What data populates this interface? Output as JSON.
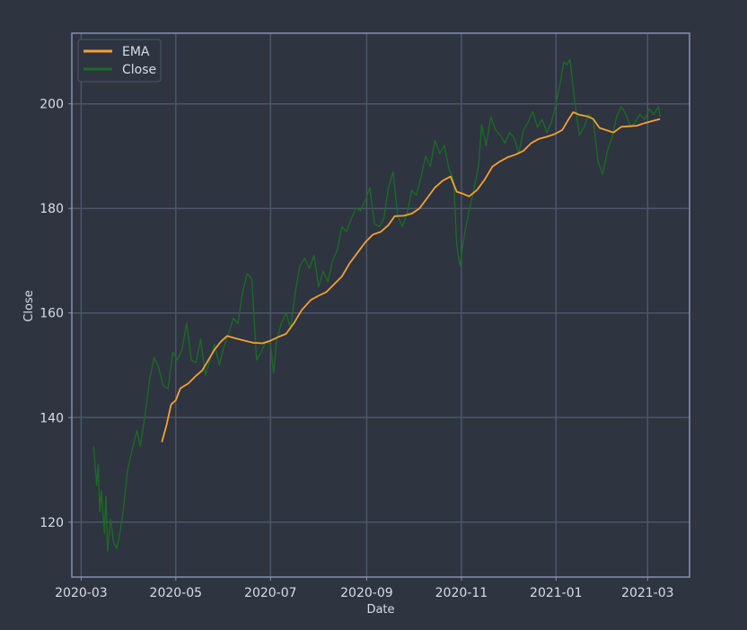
{
  "chart_data": {
    "type": "line",
    "title": "",
    "xlabel": "Date",
    "ylabel": "Close",
    "x_ticks": [
      "2020-03",
      "2020-05",
      "2020-07",
      "2020-09",
      "2020-11",
      "2021-01",
      "2021-03"
    ],
    "y_ticks": [
      120,
      140,
      160,
      180,
      200
    ],
    "xlim": [
      "2020-02-24",
      "2021-03-28"
    ],
    "ylim": [
      109.5,
      213.5
    ],
    "grid": true,
    "legend_position": "top-left",
    "colors": {
      "background": "#2e3440",
      "grid": "#4c566a",
      "frame": "#8791b0",
      "text": "#d8dee9"
    },
    "series": [
      {
        "name": "EMA",
        "color": "#f5a132",
        "points": [
          [
            "2020-04-22",
            135.3
          ],
          [
            "2020-04-25",
            138.5
          ],
          [
            "2020-04-28",
            142.5
          ],
          [
            "2020-05-01",
            143.3
          ],
          [
            "2020-05-04",
            145.6
          ],
          [
            "2020-05-09",
            146.5
          ],
          [
            "2020-05-14",
            148.0
          ],
          [
            "2020-05-18",
            149.0
          ],
          [
            "2020-05-22",
            151.0
          ],
          [
            "2020-05-26",
            153.0
          ],
          [
            "2020-05-30",
            154.5
          ],
          [
            "2020-06-03",
            155.6
          ],
          [
            "2020-06-08",
            155.2
          ],
          [
            "2020-06-13",
            154.8
          ],
          [
            "2020-06-20",
            154.3
          ],
          [
            "2020-06-26",
            154.2
          ],
          [
            "2020-07-01",
            154.7
          ],
          [
            "2020-07-06",
            155.4
          ],
          [
            "2020-07-11",
            156.0
          ],
          [
            "2020-07-16",
            158.0
          ],
          [
            "2020-07-21",
            160.5
          ],
          [
            "2020-07-27",
            162.5
          ],
          [
            "2020-08-01",
            163.3
          ],
          [
            "2020-08-06",
            164.0
          ],
          [
            "2020-08-11",
            165.5
          ],
          [
            "2020-08-16",
            167.0
          ],
          [
            "2020-08-21",
            169.5
          ],
          [
            "2020-08-26",
            171.5
          ],
          [
            "2020-08-31",
            173.5
          ],
          [
            "2020-09-05",
            175.0
          ],
          [
            "2020-09-10",
            175.5
          ],
          [
            "2020-09-15",
            176.8
          ],
          [
            "2020-09-19",
            178.5
          ],
          [
            "2020-09-25",
            178.6
          ],
          [
            "2020-09-30",
            179.0
          ],
          [
            "2020-10-05",
            180.0
          ],
          [
            "2020-10-10",
            182.0
          ],
          [
            "2020-10-15",
            184.0
          ],
          [
            "2020-10-20",
            185.3
          ],
          [
            "2020-10-25",
            186.1
          ],
          [
            "2020-10-29",
            183.2
          ],
          [
            "2020-11-02",
            182.8
          ],
          [
            "2020-11-06",
            182.3
          ],
          [
            "2020-11-11",
            183.5
          ],
          [
            "2020-11-16",
            185.5
          ],
          [
            "2020-11-21",
            188.0
          ],
          [
            "2020-11-26",
            189.0
          ],
          [
            "2020-12-01",
            189.8
          ],
          [
            "2020-12-06",
            190.3
          ],
          [
            "2020-12-11",
            191.0
          ],
          [
            "2020-12-16",
            192.5
          ],
          [
            "2020-12-21",
            193.3
          ],
          [
            "2020-12-26",
            193.7
          ],
          [
            "2020-12-31",
            194.2
          ],
          [
            "2021-01-05",
            195.0
          ],
          [
            "2021-01-09",
            197.0
          ],
          [
            "2021-01-12",
            198.4
          ],
          [
            "2021-01-16",
            197.9
          ],
          [
            "2021-01-21",
            197.6
          ],
          [
            "2021-01-25",
            197.1
          ],
          [
            "2021-01-29",
            195.4
          ],
          [
            "2021-02-03",
            194.9
          ],
          [
            "2021-02-07",
            194.5
          ],
          [
            "2021-02-12",
            195.6
          ],
          [
            "2021-02-17",
            195.7
          ],
          [
            "2021-02-22",
            195.8
          ],
          [
            "2021-02-27",
            196.3
          ],
          [
            "2021-03-04",
            196.7
          ],
          [
            "2021-03-09",
            197.1
          ]
        ]
      },
      {
        "name": "Close",
        "color": "#1a6b25",
        "points": [
          [
            "2020-03-09",
            134.5
          ],
          [
            "2020-03-11",
            127.0
          ],
          [
            "2020-03-12",
            131.0
          ],
          [
            "2020-03-13",
            122.0
          ],
          [
            "2020-03-14",
            126.0
          ],
          [
            "2020-03-16",
            118.0
          ],
          [
            "2020-03-17",
            125.0
          ],
          [
            "2020-03-18",
            114.5
          ],
          [
            "2020-03-20",
            120.5
          ],
          [
            "2020-03-22",
            116.0
          ],
          [
            "2020-03-24",
            115.0
          ],
          [
            "2020-03-26",
            118.0
          ],
          [
            "2020-03-28",
            122.0
          ],
          [
            "2020-03-31",
            130.0
          ],
          [
            "2020-04-03",
            134.0
          ],
          [
            "2020-04-06",
            137.5
          ],
          [
            "2020-04-08",
            134.5
          ],
          [
            "2020-04-11",
            140.0
          ],
          [
            "2020-04-14",
            147.0
          ],
          [
            "2020-04-17",
            151.5
          ],
          [
            "2020-04-20",
            149.5
          ],
          [
            "2020-04-23",
            146.0
          ],
          [
            "2020-04-26",
            145.5
          ],
          [
            "2020-04-29",
            152.5
          ],
          [
            "2020-05-02",
            151.0
          ],
          [
            "2020-05-05",
            153.0
          ],
          [
            "2020-05-08",
            158.0
          ],
          [
            "2020-05-11",
            151.0
          ],
          [
            "2020-05-14",
            150.5
          ],
          [
            "2020-05-17",
            155.0
          ],
          [
            "2020-05-20",
            148.0
          ],
          [
            "2020-05-23",
            151.0
          ],
          [
            "2020-05-26",
            154.0
          ],
          [
            "2020-05-29",
            150.0
          ],
          [
            "2020-06-01",
            153.5
          ],
          [
            "2020-06-04",
            156.0
          ],
          [
            "2020-06-07",
            159.0
          ],
          [
            "2020-06-10",
            158.0
          ],
          [
            "2020-06-13",
            164.0
          ],
          [
            "2020-06-16",
            167.5
          ],
          [
            "2020-06-19",
            166.5
          ],
          [
            "2020-06-22",
            151.0
          ],
          [
            "2020-06-25",
            152.5
          ],
          [
            "2020-06-28",
            154.5
          ],
          [
            "2020-07-01",
            154.0
          ],
          [
            "2020-07-03",
            148.5
          ],
          [
            "2020-07-05",
            155.0
          ],
          [
            "2020-07-08",
            158.0
          ],
          [
            "2020-07-11",
            160.0
          ],
          [
            "2020-07-14",
            157.0
          ],
          [
            "2020-07-17",
            164.0
          ],
          [
            "2020-07-20",
            169.0
          ],
          [
            "2020-07-23",
            170.5
          ],
          [
            "2020-07-26",
            168.5
          ],
          [
            "2020-07-29",
            171.0
          ],
          [
            "2020-08-01",
            165.0
          ],
          [
            "2020-08-04",
            168.0
          ],
          [
            "2020-08-07",
            166.0
          ],
          [
            "2020-08-10",
            170.0
          ],
          [
            "2020-08-13",
            172.0
          ],
          [
            "2020-08-16",
            176.5
          ],
          [
            "2020-08-19",
            175.5
          ],
          [
            "2020-08-22",
            178.0
          ],
          [
            "2020-08-25",
            180.0
          ],
          [
            "2020-08-28",
            179.5
          ],
          [
            "2020-08-31",
            181.5
          ],
          [
            "2020-09-03",
            184.0
          ],
          [
            "2020-09-06",
            177.0
          ],
          [
            "2020-09-09",
            176.5
          ],
          [
            "2020-09-12",
            178.0
          ],
          [
            "2020-09-15",
            184.0
          ],
          [
            "2020-09-18",
            187.0
          ],
          [
            "2020-09-21",
            178.5
          ],
          [
            "2020-09-24",
            176.5
          ],
          [
            "2020-09-27",
            179.0
          ],
          [
            "2020-09-30",
            183.5
          ],
          [
            "2020-10-03",
            182.5
          ],
          [
            "2020-10-06",
            186.0
          ],
          [
            "2020-10-09",
            190.0
          ],
          [
            "2020-10-12",
            188.0
          ],
          [
            "2020-10-15",
            193.0
          ],
          [
            "2020-10-18",
            190.5
          ],
          [
            "2020-10-21",
            192.0
          ],
          [
            "2020-10-24",
            187.5
          ],
          [
            "2020-10-27",
            185.5
          ],
          [
            "2020-10-29",
            173.0
          ],
          [
            "2020-10-31",
            169.0
          ],
          [
            "2020-11-03",
            175.0
          ],
          [
            "2020-11-06",
            179.5
          ],
          [
            "2020-11-09",
            183.5
          ],
          [
            "2020-11-12",
            188.0
          ],
          [
            "2020-11-14",
            196.0
          ],
          [
            "2020-11-17",
            192.0
          ],
          [
            "2020-11-20",
            197.5
          ],
          [
            "2020-11-23",
            195.0
          ],
          [
            "2020-11-26",
            194.0
          ],
          [
            "2020-11-29",
            192.5
          ],
          [
            "2020-12-02",
            194.5
          ],
          [
            "2020-12-05",
            193.5
          ],
          [
            "2020-12-08",
            190.5
          ],
          [
            "2020-12-11",
            195.0
          ],
          [
            "2020-12-14",
            196.5
          ],
          [
            "2020-12-17",
            198.5
          ],
          [
            "2020-12-20",
            195.5
          ],
          [
            "2020-12-23",
            197.0
          ],
          [
            "2020-12-26",
            194.5
          ],
          [
            "2020-12-29",
            196.5
          ],
          [
            "2021-01-01",
            200.0
          ],
          [
            "2021-01-04",
            204.5
          ],
          [
            "2021-01-06",
            208.0
          ],
          [
            "2021-01-08",
            207.5
          ],
          [
            "2021-01-10",
            208.5
          ],
          [
            "2021-01-13",
            200.5
          ],
          [
            "2021-01-16",
            194.0
          ],
          [
            "2021-01-19",
            195.5
          ],
          [
            "2021-01-22",
            198.0
          ],
          [
            "2021-01-25",
            197.0
          ],
          [
            "2021-01-28",
            189.0
          ],
          [
            "2021-01-31",
            186.5
          ],
          [
            "2021-02-03",
            191.0
          ],
          [
            "2021-02-06",
            193.5
          ],
          [
            "2021-02-09",
            197.5
          ],
          [
            "2021-02-12",
            199.5
          ],
          [
            "2021-02-15",
            198.0
          ],
          [
            "2021-02-18",
            195.5
          ],
          [
            "2021-02-21",
            196.5
          ],
          [
            "2021-02-24",
            198.0
          ],
          [
            "2021-02-27",
            197.0
          ],
          [
            "2021-03-02",
            199.0
          ],
          [
            "2021-03-05",
            198.0
          ],
          [
            "2021-03-08",
            199.5
          ],
          [
            "2021-03-09",
            197.5
          ]
        ]
      }
    ]
  }
}
